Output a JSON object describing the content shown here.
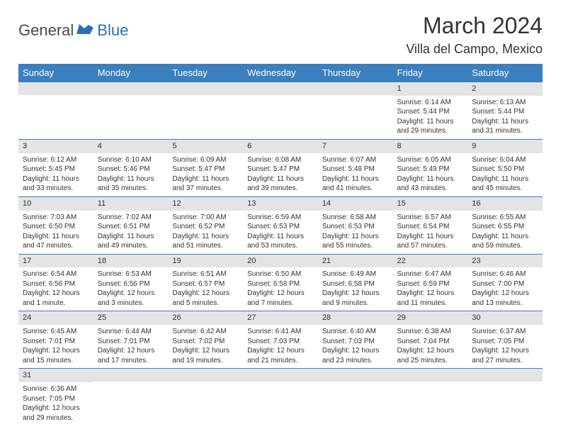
{
  "logo": {
    "text1": "General",
    "text2": "Blue",
    "brand_color": "#2d6fb3"
  },
  "title": "March 2024",
  "location": "Villa del Campo, Mexico",
  "colors": {
    "header_bg": "#3b7fbf",
    "header_text": "#ffffff",
    "daynum_bg": "#e4e4e4",
    "row_border": "#3b7fbf",
    "text": "#333333",
    "background": "#ffffff"
  },
  "fonts": {
    "title_size": 32,
    "location_size": 18,
    "dayheader_size": 13,
    "daynum_size": 11,
    "body_size": 10
  },
  "day_headers": [
    "Sunday",
    "Monday",
    "Tuesday",
    "Wednesday",
    "Thursday",
    "Friday",
    "Saturday"
  ],
  "weeks": [
    [
      null,
      null,
      null,
      null,
      null,
      {
        "n": "1",
        "sunrise": "Sunrise: 6:14 AM",
        "sunset": "Sunset: 5:44 PM",
        "day1": "Daylight: 11 hours",
        "day2": "and 29 minutes."
      },
      {
        "n": "2",
        "sunrise": "Sunrise: 6:13 AM",
        "sunset": "Sunset: 5:44 PM",
        "day1": "Daylight: 11 hours",
        "day2": "and 31 minutes."
      }
    ],
    [
      {
        "n": "3",
        "sunrise": "Sunrise: 6:12 AM",
        "sunset": "Sunset: 5:45 PM",
        "day1": "Daylight: 11 hours",
        "day2": "and 33 minutes."
      },
      {
        "n": "4",
        "sunrise": "Sunrise: 6:10 AM",
        "sunset": "Sunset: 5:46 PM",
        "day1": "Daylight: 11 hours",
        "day2": "and 35 minutes."
      },
      {
        "n": "5",
        "sunrise": "Sunrise: 6:09 AM",
        "sunset": "Sunset: 5:47 PM",
        "day1": "Daylight: 11 hours",
        "day2": "and 37 minutes."
      },
      {
        "n": "6",
        "sunrise": "Sunrise: 6:08 AM",
        "sunset": "Sunset: 5:47 PM",
        "day1": "Daylight: 11 hours",
        "day2": "and 39 minutes."
      },
      {
        "n": "7",
        "sunrise": "Sunrise: 6:07 AM",
        "sunset": "Sunset: 5:48 PM",
        "day1": "Daylight: 11 hours",
        "day2": "and 41 minutes."
      },
      {
        "n": "8",
        "sunrise": "Sunrise: 6:05 AM",
        "sunset": "Sunset: 5:49 PM",
        "day1": "Daylight: 11 hours",
        "day2": "and 43 minutes."
      },
      {
        "n": "9",
        "sunrise": "Sunrise: 6:04 AM",
        "sunset": "Sunset: 5:50 PM",
        "day1": "Daylight: 11 hours",
        "day2": "and 45 minutes."
      }
    ],
    [
      {
        "n": "10",
        "sunrise": "Sunrise: 7:03 AM",
        "sunset": "Sunset: 6:50 PM",
        "day1": "Daylight: 11 hours",
        "day2": "and 47 minutes."
      },
      {
        "n": "11",
        "sunrise": "Sunrise: 7:02 AM",
        "sunset": "Sunset: 6:51 PM",
        "day1": "Daylight: 11 hours",
        "day2": "and 49 minutes."
      },
      {
        "n": "12",
        "sunrise": "Sunrise: 7:00 AM",
        "sunset": "Sunset: 6:52 PM",
        "day1": "Daylight: 11 hours",
        "day2": "and 51 minutes."
      },
      {
        "n": "13",
        "sunrise": "Sunrise: 6:59 AM",
        "sunset": "Sunset: 6:53 PM",
        "day1": "Daylight: 11 hours",
        "day2": "and 53 minutes."
      },
      {
        "n": "14",
        "sunrise": "Sunrise: 6:58 AM",
        "sunset": "Sunset: 6:53 PM",
        "day1": "Daylight: 11 hours",
        "day2": "and 55 minutes."
      },
      {
        "n": "15",
        "sunrise": "Sunrise: 6:57 AM",
        "sunset": "Sunset: 6:54 PM",
        "day1": "Daylight: 11 hours",
        "day2": "and 57 minutes."
      },
      {
        "n": "16",
        "sunrise": "Sunrise: 6:55 AM",
        "sunset": "Sunset: 6:55 PM",
        "day1": "Daylight: 11 hours",
        "day2": "and 59 minutes."
      }
    ],
    [
      {
        "n": "17",
        "sunrise": "Sunrise: 6:54 AM",
        "sunset": "Sunset: 6:56 PM",
        "day1": "Daylight: 12 hours",
        "day2": "and 1 minute."
      },
      {
        "n": "18",
        "sunrise": "Sunrise: 6:53 AM",
        "sunset": "Sunset: 6:56 PM",
        "day1": "Daylight: 12 hours",
        "day2": "and 3 minutes."
      },
      {
        "n": "19",
        "sunrise": "Sunrise: 6:51 AM",
        "sunset": "Sunset: 6:57 PM",
        "day1": "Daylight: 12 hours",
        "day2": "and 5 minutes."
      },
      {
        "n": "20",
        "sunrise": "Sunrise: 6:50 AM",
        "sunset": "Sunset: 6:58 PM",
        "day1": "Daylight: 12 hours",
        "day2": "and 7 minutes."
      },
      {
        "n": "21",
        "sunrise": "Sunrise: 6:49 AM",
        "sunset": "Sunset: 6:58 PM",
        "day1": "Daylight: 12 hours",
        "day2": "and 9 minutes."
      },
      {
        "n": "22",
        "sunrise": "Sunrise: 6:47 AM",
        "sunset": "Sunset: 6:59 PM",
        "day1": "Daylight: 12 hours",
        "day2": "and 11 minutes."
      },
      {
        "n": "23",
        "sunrise": "Sunrise: 6:46 AM",
        "sunset": "Sunset: 7:00 PM",
        "day1": "Daylight: 12 hours",
        "day2": "and 13 minutes."
      }
    ],
    [
      {
        "n": "24",
        "sunrise": "Sunrise: 6:45 AM",
        "sunset": "Sunset: 7:01 PM",
        "day1": "Daylight: 12 hours",
        "day2": "and 15 minutes."
      },
      {
        "n": "25",
        "sunrise": "Sunrise: 6:44 AM",
        "sunset": "Sunset: 7:01 PM",
        "day1": "Daylight: 12 hours",
        "day2": "and 17 minutes."
      },
      {
        "n": "26",
        "sunrise": "Sunrise: 6:42 AM",
        "sunset": "Sunset: 7:02 PM",
        "day1": "Daylight: 12 hours",
        "day2": "and 19 minutes."
      },
      {
        "n": "27",
        "sunrise": "Sunrise: 6:41 AM",
        "sunset": "Sunset: 7:03 PM",
        "day1": "Daylight: 12 hours",
        "day2": "and 21 minutes."
      },
      {
        "n": "28",
        "sunrise": "Sunrise: 6:40 AM",
        "sunset": "Sunset: 7:03 PM",
        "day1": "Daylight: 12 hours",
        "day2": "and 23 minutes."
      },
      {
        "n": "29",
        "sunrise": "Sunrise: 6:38 AM",
        "sunset": "Sunset: 7:04 PM",
        "day1": "Daylight: 12 hours",
        "day2": "and 25 minutes."
      },
      {
        "n": "30",
        "sunrise": "Sunrise: 6:37 AM",
        "sunset": "Sunset: 7:05 PM",
        "day1": "Daylight: 12 hours",
        "day2": "and 27 minutes."
      }
    ],
    [
      {
        "n": "31",
        "sunrise": "Sunrise: 6:36 AM",
        "sunset": "Sunset: 7:05 PM",
        "day1": "Daylight: 12 hours",
        "day2": "and 29 minutes."
      },
      null,
      null,
      null,
      null,
      null,
      null
    ]
  ]
}
